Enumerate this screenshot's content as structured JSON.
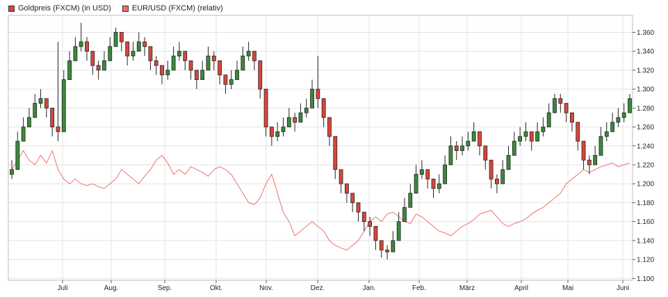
{
  "legend": {
    "gold_label": "Goldpreis (FXCM) (in USD)",
    "eurusd_label": "EUR/USD (FXCM) (relativ)"
  },
  "chart_data": {
    "type": "line",
    "title": "",
    "xlabel": "",
    "ylabel": "",
    "x_tick_labels": [
      "Juli",
      "Aug.",
      "Sep.",
      "Okt.",
      "Nov.",
      "Dez.",
      "Jan.",
      "Feb.",
      "März",
      "April",
      "Mai",
      "Juni"
    ],
    "y_tick_labels": [
      "1.360",
      "1.340",
      "1.320",
      "1.300",
      "1.280",
      "1.260",
      "1.240",
      "1.220",
      "1.200",
      "1.180",
      "1.160",
      "1.140",
      "1.120",
      "1.100"
    ],
    "ylim": [
      1.098,
      1.378
    ],
    "grid": true,
    "series": [
      {
        "name": "Goldpreis (FXCM) (in USD)",
        "style": "candlestick",
        "color_up": "#3a8a3a",
        "color_down": "#d9463b",
        "close": [
          1.215,
          1.245,
          1.26,
          1.27,
          1.285,
          1.29,
          1.28,
          1.26,
          1.255,
          1.31,
          1.33,
          1.345,
          1.35,
          1.34,
          1.325,
          1.32,
          1.33,
          1.345,
          1.36,
          1.35,
          1.335,
          1.34,
          1.35,
          1.345,
          1.33,
          1.325,
          1.315,
          1.32,
          1.335,
          1.34,
          1.33,
          1.32,
          1.31,
          1.32,
          1.335,
          1.33,
          1.315,
          1.305,
          1.31,
          1.32,
          1.335,
          1.34,
          1.33,
          1.3,
          1.26,
          1.25,
          1.255,
          1.26,
          1.27,
          1.265,
          1.275,
          1.28,
          1.3,
          1.29,
          1.27,
          1.25,
          1.215,
          1.2,
          1.19,
          1.18,
          1.17,
          1.16,
          1.155,
          1.14,
          1.13,
          1.128,
          1.14,
          1.16,
          1.175,
          1.19,
          1.21,
          1.215,
          1.205,
          1.195,
          1.2,
          1.22,
          1.24,
          1.235,
          1.24,
          1.245,
          1.255,
          1.24,
          1.225,
          1.205,
          1.2,
          1.215,
          1.23,
          1.245,
          1.25,
          1.255,
          1.245,
          1.255,
          1.26,
          1.275,
          1.29,
          1.285,
          1.275,
          1.265,
          1.245,
          1.225,
          1.22,
          1.23,
          1.25,
          1.255,
          1.265,
          1.27,
          1.275,
          1.29
        ],
        "high": [
          1.225,
          1.255,
          1.27,
          1.28,
          1.295,
          1.3,
          1.29,
          1.275,
          1.35,
          1.32,
          1.34,
          1.355,
          1.37,
          1.355,
          1.335,
          1.33,
          1.34,
          1.355,
          1.365,
          1.36,
          1.345,
          1.35,
          1.36,
          1.355,
          1.34,
          1.335,
          1.325,
          1.33,
          1.345,
          1.35,
          1.34,
          1.33,
          1.32,
          1.33,
          1.345,
          1.34,
          1.325,
          1.315,
          1.32,
          1.33,
          1.345,
          1.35,
          1.34,
          1.31,
          1.27,
          1.26,
          1.265,
          1.27,
          1.28,
          1.275,
          1.285,
          1.29,
          1.31,
          1.335,
          1.28,
          1.26,
          1.225,
          1.21,
          1.2,
          1.19,
          1.18,
          1.17,
          1.165,
          1.15,
          1.14,
          1.135,
          1.15,
          1.17,
          1.185,
          1.2,
          1.22,
          1.225,
          1.215,
          1.205,
          1.21,
          1.23,
          1.25,
          1.245,
          1.25,
          1.255,
          1.265,
          1.25,
          1.235,
          1.215,
          1.21,
          1.225,
          1.24,
          1.255,
          1.26,
          1.265,
          1.255,
          1.265,
          1.27,
          1.285,
          1.295,
          1.295,
          1.285,
          1.275,
          1.255,
          1.235,
          1.23,
          1.24,
          1.26,
          1.265,
          1.275,
          1.28,
          1.285,
          1.295
        ],
        "low": [
          1.205,
          1.235,
          1.25,
          1.26,
          1.275,
          1.28,
          1.27,
          1.25,
          1.245,
          1.3,
          1.32,
          1.335,
          1.34,
          1.33,
          1.315,
          1.31,
          1.32,
          1.335,
          1.35,
          1.34,
          1.325,
          1.33,
          1.34,
          1.335,
          1.32,
          1.315,
          1.305,
          1.31,
          1.325,
          1.33,
          1.32,
          1.31,
          1.3,
          1.31,
          1.325,
          1.32,
          1.305,
          1.295,
          1.3,
          1.31,
          1.325,
          1.33,
          1.32,
          1.29,
          1.25,
          1.24,
          1.245,
          1.25,
          1.26,
          1.255,
          1.265,
          1.27,
          1.29,
          1.28,
          1.26,
          1.24,
          1.205,
          1.19,
          1.18,
          1.17,
          1.16,
          1.15,
          1.145,
          1.13,
          1.122,
          1.12,
          1.13,
          1.15,
          1.165,
          1.18,
          1.2,
          1.205,
          1.195,
          1.185,
          1.19,
          1.21,
          1.23,
          1.225,
          1.23,
          1.235,
          1.245,
          1.23,
          1.215,
          1.195,
          1.19,
          1.205,
          1.22,
          1.235,
          1.24,
          1.245,
          1.235,
          1.245,
          1.25,
          1.265,
          1.28,
          1.275,
          1.265,
          1.255,
          1.235,
          1.215,
          1.21,
          1.22,
          1.24,
          1.245,
          1.255,
          1.26,
          1.265,
          1.28
        ]
      },
      {
        "name": "EUR/USD (FXCM) (relativ)",
        "style": "line",
        "color": "#f07070",
        "values": [
          1.215,
          1.225,
          1.235,
          1.225,
          1.22,
          1.23,
          1.222,
          1.235,
          1.215,
          1.205,
          1.2,
          1.205,
          1.2,
          1.198,
          1.2,
          1.197,
          1.195,
          1.2,
          1.205,
          1.215,
          1.21,
          1.205,
          1.2,
          1.208,
          1.215,
          1.225,
          1.23,
          1.222,
          1.21,
          1.215,
          1.21,
          1.218,
          1.215,
          1.212,
          1.208,
          1.215,
          1.218,
          1.215,
          1.21,
          1.2,
          1.19,
          1.18,
          1.178,
          1.185,
          1.2,
          1.21,
          1.19,
          1.17,
          1.16,
          1.145,
          1.15,
          1.155,
          1.16,
          1.155,
          1.15,
          1.14,
          1.135,
          1.132,
          1.13,
          1.135,
          1.14,
          1.15,
          1.16,
          1.165,
          1.16,
          1.168,
          1.17,
          1.165,
          1.16,
          1.158,
          1.168,
          1.165,
          1.16,
          1.155,
          1.15,
          1.148,
          1.145,
          1.15,
          1.155,
          1.158,
          1.162,
          1.168,
          1.17,
          1.172,
          1.165,
          1.158,
          1.155,
          1.158,
          1.16,
          1.163,
          1.168,
          1.172,
          1.175,
          1.18,
          1.185,
          1.19,
          1.2,
          1.205,
          1.21,
          1.215,
          1.212,
          1.215,
          1.218,
          1.22,
          1.222,
          1.218,
          1.22,
          1.222
        ]
      }
    ]
  }
}
